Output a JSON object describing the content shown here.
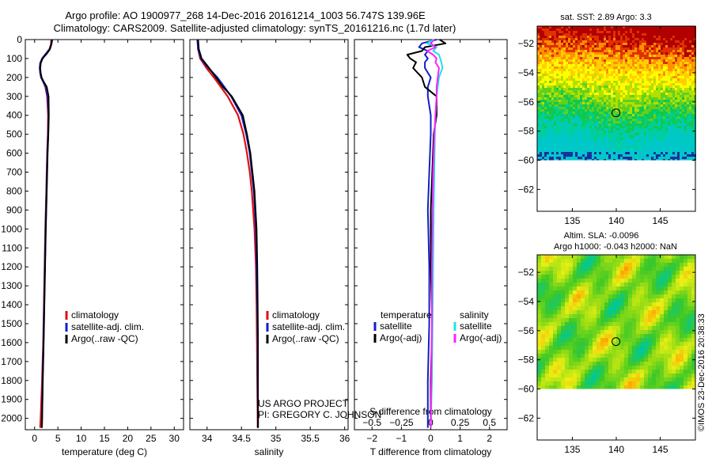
{
  "header": {
    "title_line1": "Argo profile: AO 1900977_268 14-Dec-2016 20161214_1003 56.747S 139.96E",
    "title_line2": "Climatology: CARS2009. Satellite-adjusted climatology: synTS_20161216.nc (1.7d later)"
  },
  "colors": {
    "climatology": "#e01010",
    "satellite_adj": "#1020c8",
    "argo": "#000000",
    "salinity_sat": "#20e0e8",
    "salinity_argo": "#ff20ff"
  },
  "chart_data": [
    {
      "type": "line",
      "id": "temperature",
      "xlabel": "temperature (deg C)",
      "ylabel": "",
      "xlim": [
        -2,
        32
      ],
      "ylim": [
        2060,
        0
      ],
      "xticks": [
        0,
        5,
        10,
        15,
        20,
        25,
        30
      ],
      "yticks": [
        0,
        100,
        200,
        300,
        400,
        500,
        600,
        700,
        800,
        900,
        1000,
        1100,
        1200,
        1300,
        1400,
        1500,
        1600,
        1700,
        1800,
        1900,
        2000
      ],
      "legend": [
        "climatology",
        "satellite-adj. clim.",
        "Argo(..raw -QC)"
      ],
      "depth": [
        0,
        25,
        50,
        75,
        100,
        125,
        150,
        175,
        200,
        225,
        250,
        300,
        400,
        500,
        600,
        800,
        1000,
        1200,
        1400,
        1600,
        1800,
        2000,
        2050
      ],
      "series": [
        {
          "name": "climatology",
          "values": [
            3.6,
            3.5,
            3.2,
            2.5,
            1.7,
            1.3,
            1.2,
            1.2,
            1.4,
            1.9,
            2.3,
            2.7,
            2.9,
            2.85,
            2.7,
            2.5,
            2.3,
            2.15,
            2.0,
            1.85,
            1.6,
            1.3,
            1.2
          ]
        },
        {
          "name": "satellite-adj. clim.",
          "values": [
            3.8,
            3.6,
            3.2,
            2.4,
            1.6,
            1.2,
            1.1,
            1.2,
            1.4,
            1.9,
            2.4,
            2.8,
            3.0,
            2.9,
            2.75,
            2.55,
            2.35,
            2.2,
            2.05,
            1.9,
            1.7,
            1.6,
            1.55
          ]
        },
        {
          "name": "Argo(..raw -QC)",
          "values": [
            3.7,
            3.6,
            3.3,
            2.6,
            1.7,
            1.3,
            1.2,
            1.3,
            1.5,
            2.0,
            2.6,
            3.0,
            3.05,
            2.95,
            2.8,
            2.6,
            2.4,
            2.25,
            2.1,
            1.95,
            1.75,
            1.6,
            1.55
          ]
        }
      ]
    },
    {
      "type": "line",
      "id": "salinity",
      "xlabel": "salinity",
      "ylabel": "",
      "xlim": [
        33.75,
        36.05
      ],
      "ylim": [
        2060,
        0
      ],
      "xticks": [
        34,
        34.5,
        35,
        35.5,
        36
      ],
      "xticklabels": [
        "34",
        "34.5",
        "35",
        "35.5",
        "36"
      ],
      "legend": [
        "climatology",
        "satellite-adj. clim.",
        "Argo(..raw -QC)"
      ],
      "depth": [
        0,
        50,
        100,
        150,
        200,
        250,
        300,
        400,
        500,
        600,
        700,
        800,
        1000,
        1200,
        1400,
        1600,
        1800,
        2000,
        2050
      ],
      "series": [
        {
          "name": "climatology",
          "values": [
            33.86,
            33.87,
            33.9,
            33.99,
            34.1,
            34.2,
            34.3,
            34.45,
            34.53,
            34.58,
            34.62,
            34.65,
            34.69,
            34.71,
            34.72,
            34.725,
            34.73,
            34.735,
            34.735
          ]
        },
        {
          "name": "satellite-adj. clim.",
          "values": [
            33.86,
            33.87,
            33.91,
            34.02,
            34.15,
            34.25,
            34.35,
            34.5,
            34.57,
            34.62,
            34.65,
            34.68,
            34.71,
            34.72,
            34.73,
            34.735,
            34.735,
            34.74,
            34.74
          ]
        },
        {
          "name": "Argo(..raw -QC)",
          "values": [
            33.87,
            33.88,
            33.92,
            34.03,
            34.13,
            34.23,
            34.36,
            34.52,
            34.58,
            34.63,
            34.66,
            34.69,
            34.72,
            34.73,
            34.735,
            34.74,
            34.74,
            34.74,
            34.74
          ]
        }
      ],
      "annotations": [
        "US ARGO PROJECT",
        "PI: GREGORY C. JOHNSON"
      ]
    },
    {
      "type": "line",
      "id": "difference",
      "xlabel": "T difference from climatology",
      "xlabel_top": "S difference from climatology",
      "xlim": [
        -2.6,
        2.6
      ],
      "ylim": [
        2060,
        0
      ],
      "xticks": [
        -2,
        -1,
        0,
        1,
        2
      ],
      "xticklabels": [
        "−2",
        "−1",
        "0",
        "1",
        "2"
      ],
      "sticks": [
        -0.5,
        -0.25,
        0,
        0.25,
        0.5
      ],
      "sticklabels": [
        "−0.5",
        "−0.25",
        "0",
        "0.25",
        "0.5"
      ],
      "s_scale": 4,
      "legend_titles": [
        "temperature",
        "salinity"
      ],
      "legend": [
        "satellite",
        "Argo(-adj)",
        "satellite",
        "Argo(-adj)"
      ],
      "depth": [
        0,
        20,
        40,
        60,
        80,
        100,
        120,
        150,
        200,
        250,
        300,
        400,
        500,
        700,
        900,
        1200,
        1500,
        1800,
        2050
      ],
      "series": [
        {
          "name": "T satellite",
          "var": "T",
          "values": [
            0.2,
            -0.3,
            -0.4,
            -0.1,
            -0.2,
            -0.1,
            -0.2,
            -0.2,
            0.0,
            -0.1,
            -0.1,
            0.0,
            0.0,
            -0.05,
            -0.1,
            -0.05,
            -0.05,
            -0.1,
            -0.1
          ]
        },
        {
          "name": "T Argo(-adj)",
          "var": "T",
          "values": [
            0.3,
            0.5,
            -0.2,
            -0.3,
            -0.8,
            -0.7,
            -0.5,
            -0.6,
            -0.3,
            -0.2,
            0.2,
            0.2,
            0.1,
            0.05,
            0.0,
            0.0,
            0.05,
            0.0,
            0.0
          ]
        },
        {
          "name": "S satellite",
          "var": "S",
          "values": [
            0.02,
            -0.03,
            0.05,
            0.02,
            0.07,
            0.08,
            0.09,
            0.1,
            0.07,
            0.06,
            0.05,
            0.04,
            0.035,
            0.03,
            0.025,
            0.02,
            0.015,
            0.01,
            0.0
          ]
        },
        {
          "name": "S Argo(-adj)",
          "var": "S",
          "values": [
            0.03,
            0.0,
            0.04,
            -0.03,
            0.02,
            0.05,
            0.04,
            0.07,
            0.06,
            0.05,
            0.05,
            0.04,
            0.03,
            0.02,
            0.015,
            0.01,
            0.01,
            0.005,
            0.0
          ]
        }
      ]
    },
    {
      "type": "heatmap",
      "id": "sst_map",
      "title": "sat. SST: 2.89 Argo: 3.3",
      "xlim": [
        131,
        149
      ],
      "ylim": [
        -63.5,
        -50.8
      ],
      "xticks": [
        135,
        140,
        145
      ],
      "yticks": [
        -52,
        -54,
        -56,
        -58,
        -60,
        -62
      ],
      "yticklabels": [
        "−52",
        "−54",
        "−56",
        "−58",
        "−60",
        "−62"
      ],
      "data_lat_min": -60,
      "marker": {
        "lon": 139.96,
        "lat": -56.747
      }
    },
    {
      "type": "heatmap",
      "id": "sla_map",
      "title": "Altim. SLA: -0.0096",
      "subtitle": "Argo h1000: -0.043 h2000: NaN",
      "xlim": [
        131,
        149
      ],
      "ylim": [
        -63.5,
        -50.8
      ],
      "xticks": [
        135,
        140,
        145
      ],
      "yticks": [
        -52,
        -54,
        -56,
        -58,
        -60,
        -62
      ],
      "yticklabels": [
        "−52",
        "−54",
        "−56",
        "−58",
        "−60",
        "−62"
      ],
      "data_lat_min": -60,
      "marker": {
        "lon": 139.96,
        "lat": -56.747
      }
    }
  ],
  "stamp": "©IMOS 23-Dec-2016 20:38:33"
}
